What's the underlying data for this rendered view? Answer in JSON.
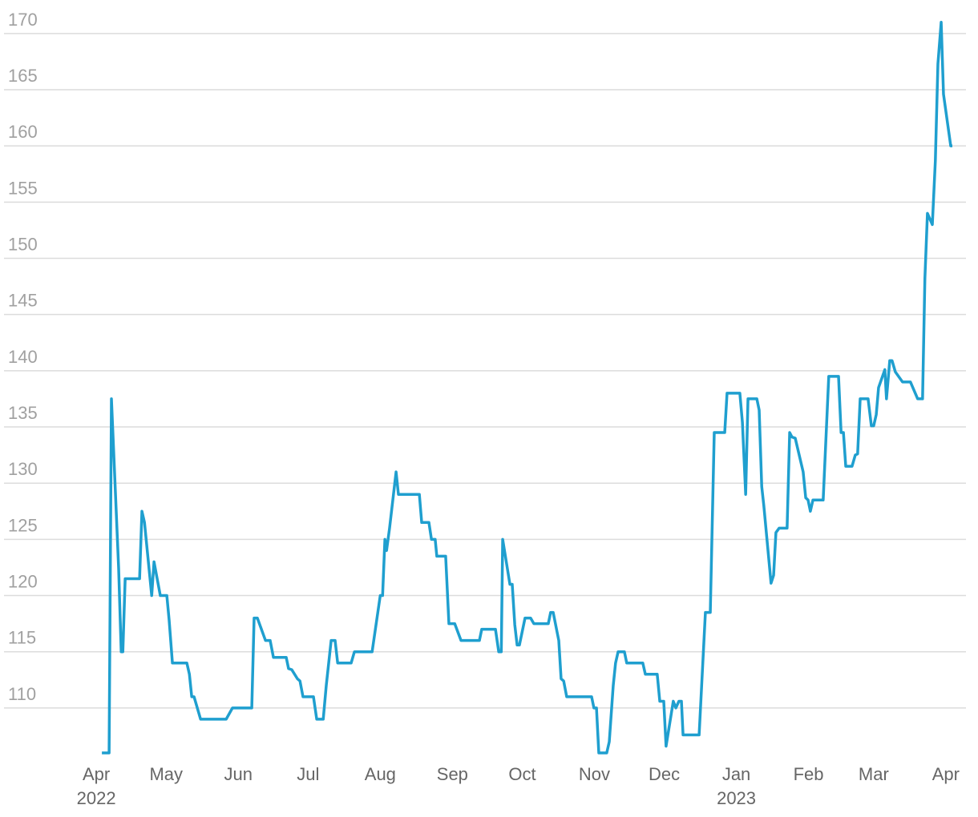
{
  "chart_data": {
    "type": "line",
    "x": [
      2.4,
      5.5,
      6.5,
      9.6,
      10.7,
      11.4,
      12.4,
      18.6,
      19.6,
      20.7,
      23.8,
      24.8,
      27.5,
      30.3,
      31.3,
      32.7,
      38.9,
      40,
      41,
      42,
      44.8,
      55.8,
      58.5,
      66.8,
      67.8,
      69.2,
      72.7,
      74.7,
      76.1,
      81.6,
      82.6,
      84,
      86.4,
      87.5,
      88.8,
      93.3,
      94.7,
      97.5,
      98.8,
      100.9,
      102.6,
      103.7,
      109.5,
      110.9,
      118.5,
      122,
      123,
      124,
      124.7,
      126,
      128.8,
      129.8,
      138.8,
      139.8,
      142.9,
      144,
      145.6,
      146.3,
      150.1,
      151.5,
      154,
      156.7,
      164.6,
      165.6,
      171.5,
      172.9,
      174,
      174.6,
      177.7,
      178.7,
      179.8,
      180.8,
      181.8,
      184.2,
      186.6,
      188,
      194.2,
      195.2,
      196.3,
      198.7,
      199.7,
      200.8,
      202.1,
      212.8,
      213.8,
      214.9,
      215.9,
      219.3,
      220.4,
      222.1,
      223.1,
      224.2,
      226.9,
      227.9,
      234.8,
      235.9,
      241,
      242.1,
      243.8,
      244.8,
      247.9,
      249,
      250.3,
      251.4,
      252.1,
      259,
      261.7,
      263.8,
      265.5,
      270,
      271,
      276.5,
      277.6,
      279,
      280,
      283.8,
      284.8,
      285.9,
      286.8,
      289.9,
      291,
      292,
      293.4,
      296.8,
      297.9,
      298.9,
      300.3,
      303.7,
      304.8,
      305.8,
      306.8,
      307.9,
      312.3,
      314.7,
      318.9,
      320,
      321,
      322,
      324.7,
      326.1,
      327.1,
      328.2,
      331.6,
      333,
      334,
      335.1,
      336.1,
      338.8,
      339.5,
      340.9,
      341.9,
      343.3,
      346.4,
      349.8,
      352.9,
      355,
      356,
      357.1,
      359.2,
      360.5,
      361.6,
      363,
      364,
      367.1,
      367.8
    ],
    "series": [
      {
        "color": "#1f9fcf",
        "values": [
          106,
          106,
          137.5,
          122.4,
          115,
          115,
          121.5,
          121.5,
          127.5,
          126.5,
          120,
          123,
          120,
          120,
          117.8,
          114,
          114,
          113,
          111,
          111,
          109,
          109,
          110,
          110,
          118,
          118,
          116,
          116,
          114.5,
          114.5,
          113.5,
          113.4,
          112.6,
          112.4,
          111,
          111,
          109,
          109,
          112,
          116,
          116,
          114,
          114,
          115,
          115,
          120,
          120,
          125,
          124,
          126,
          131,
          129,
          129,
          126.5,
          126.5,
          125,
          125,
          123.5,
          123.5,
          117.5,
          117.5,
          116,
          116,
          117,
          117,
          115,
          115,
          125,
          121,
          121,
          117.4,
          115.6,
          115.6,
          118,
          118,
          117.5,
          117.5,
          118.5,
          118.5,
          116,
          112.6,
          112.4,
          111,
          111,
          110,
          110,
          106,
          106,
          107,
          112,
          114,
          115,
          115,
          114,
          114,
          113,
          113,
          110.6,
          110.6,
          106.6,
          110.6,
          110,
          110.6,
          110.6,
          107.6,
          107.6,
          118.5,
          118.5,
          134.5,
          134.5,
          138,
          138,
          135.4,
          129,
          137.5,
          137.5,
          136.5,
          129.7,
          128,
          121.1,
          121.8,
          125.6,
          126,
          126,
          134.5,
          134.1,
          134,
          131,
          128.7,
          128.5,
          127.5,
          128.5,
          128.5,
          139.5,
          139.5,
          134.5,
          134.5,
          131.5,
          131.5,
          132.5,
          132.6,
          137.5,
          137.5,
          135.1,
          135.1,
          136.1,
          138.5,
          140.1,
          137.5,
          140.9,
          140.9,
          139.9,
          139,
          139,
          137.5,
          137.5,
          148.2,
          154,
          153,
          158.7,
          167.3,
          171,
          164.6,
          160,
          160
        ]
      }
    ],
    "xlim": [
      -40,
      374
    ],
    "xticks": [
      {
        "value": 0,
        "label": "Apr 2022"
      },
      {
        "value": 30,
        "label": "May"
      },
      {
        "value": 61,
        "label": "Jun"
      },
      {
        "value": 91,
        "label": "Jul"
      },
      {
        "value": 122,
        "label": "Aug"
      },
      {
        "value": 153,
        "label": "Sep"
      },
      {
        "value": 183,
        "label": "Oct"
      },
      {
        "value": 214,
        "label": "Nov"
      },
      {
        "value": 244,
        "label": "Dec"
      },
      {
        "value": 275,
        "label": "Jan 2023"
      },
      {
        "value": 306,
        "label": "Feb"
      },
      {
        "value": 334,
        "label": "Mar"
      },
      {
        "value": 365,
        "label": "Apr"
      }
    ],
    "ylim": [
      106,
      171.2
    ],
    "yticks": [
      110,
      115,
      120,
      125,
      130,
      135,
      140,
      145,
      150,
      155,
      160,
      165,
      170
    ],
    "grid": true
  }
}
